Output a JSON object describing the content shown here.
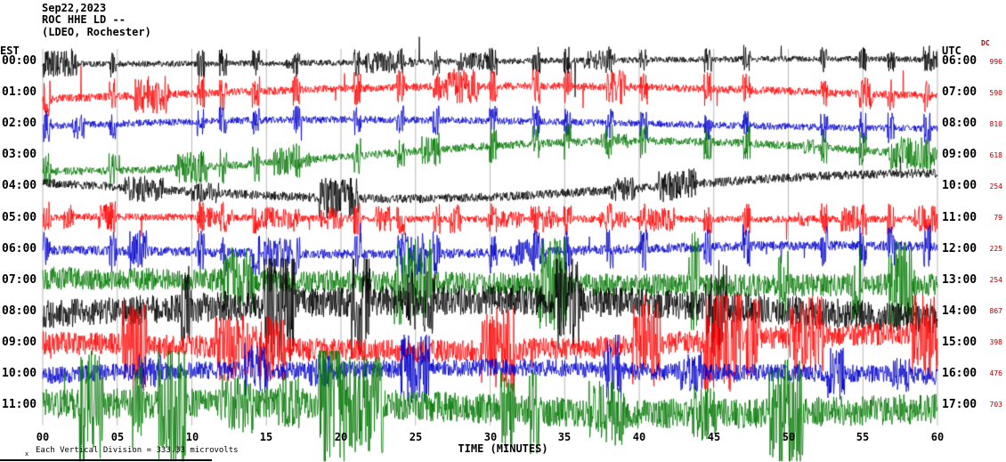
{
  "header": {
    "date": "Sep22,2023",
    "station": "ROC HHE LD --",
    "network": "(LDEO, Rochester)"
  },
  "axes": {
    "left_label": "EST",
    "right_label": "UTC",
    "dc_label": "DC",
    "xlabel": "TIME (MINUTES)",
    "x_ticks": [
      "00",
      "05",
      "10",
      "15",
      "20",
      "25",
      "30",
      "35",
      "40",
      "45",
      "50",
      "55",
      "60"
    ]
  },
  "footer": {
    "scale_note": "Each Vertical Division = 333.33 microvolts",
    "marker": "x"
  },
  "chart_data": {
    "type": "line",
    "subtype": "helicorder-seismogram",
    "title": "Sep22,2023 ROC HHE LD -- (LDEO, Rochester)",
    "xlabel": "TIME (MINUTES)",
    "x_range_minutes": [
      0,
      60
    ],
    "x_tick_interval_minutes": 5,
    "scale_microvolts_per_division": 333.33,
    "colors_cycle": [
      "#000000",
      "#ff0000",
      "#0000cc",
      "#007700"
    ],
    "events_minutes": [
      0.3,
      4.7,
      10.6,
      12.1,
      14.3,
      17.0,
      21.1,
      24.0,
      26.4,
      30.2,
      33.1,
      35.2,
      38.0,
      40.3,
      44.6,
      47.2,
      52.4,
      55.0,
      56.9,
      59.3
    ],
    "rows": [
      {
        "est": "00:00",
        "utc": "06:00",
        "dc": "996",
        "color": "#000000",
        "hf": 3.5,
        "wander": 3,
        "spike": 26,
        "clamp": 62,
        "spiky": true
      },
      {
        "est": "01:00",
        "utc": "07:00",
        "dc": "590",
        "color": "#ff0000",
        "hf": 4.5,
        "wander": 5,
        "spike": 22,
        "clamp": 55,
        "spiky": true
      },
      {
        "est": "02:00",
        "utc": "08:00",
        "dc": "810",
        "color": "#0000cc",
        "hf": 4,
        "wander": 6,
        "spike": 16,
        "clamp": 45,
        "spiky": true
      },
      {
        "est": "03:00",
        "utc": "09:00",
        "dc": "618",
        "color": "#007700",
        "hf": 4.5,
        "wander": 9,
        "spike": 18,
        "clamp": 50,
        "spiky": true
      },
      {
        "est": "04:00",
        "utc": "10:00",
        "dc": "254",
        "color": "#000000",
        "hf": 5,
        "wander": 12,
        "spike": 14,
        "clamp": 45,
        "spiky": false
      },
      {
        "est": "05:00",
        "utc": "11:00",
        "dc": "79",
        "color": "#ff0000",
        "hf": 4,
        "wander": 3,
        "spike": 20,
        "clamp": 50,
        "spiky": true
      },
      {
        "est": "06:00",
        "utc": "12:00",
        "dc": "225",
        "color": "#0000cc",
        "hf": 5.5,
        "wander": 4,
        "spike": 18,
        "clamp": 48,
        "spiky": true
      },
      {
        "est": "07:00",
        "utc": "13:00",
        "dc": "254",
        "color": "#007700",
        "hf": 13,
        "wander": 6,
        "spike": 16,
        "clamp": 55,
        "spiky": false
      },
      {
        "est": "08:00",
        "utc": "14:00",
        "dc": "867",
        "color": "#000000",
        "hf": 17,
        "wander": 8,
        "spike": 14,
        "clamp": 60,
        "spiky": false
      },
      {
        "est": "09:00",
        "utc": "15:00",
        "dc": "398",
        "color": "#ff0000",
        "hf": 13,
        "wander": 6,
        "spike": 14,
        "clamp": 55,
        "spiky": false
      },
      {
        "est": "10:00",
        "utc": "16:00",
        "dc": "476",
        "color": "#0000cc",
        "hf": 10,
        "wander": 5,
        "spike": 12,
        "clamp": 45,
        "spiky": false
      },
      {
        "est": "11:00",
        "utc": "17:00",
        "dc": "703",
        "color": "#007700",
        "hf": 17,
        "wander": 6,
        "spike": 14,
        "clamp": 62,
        "spiky": false
      }
    ]
  }
}
